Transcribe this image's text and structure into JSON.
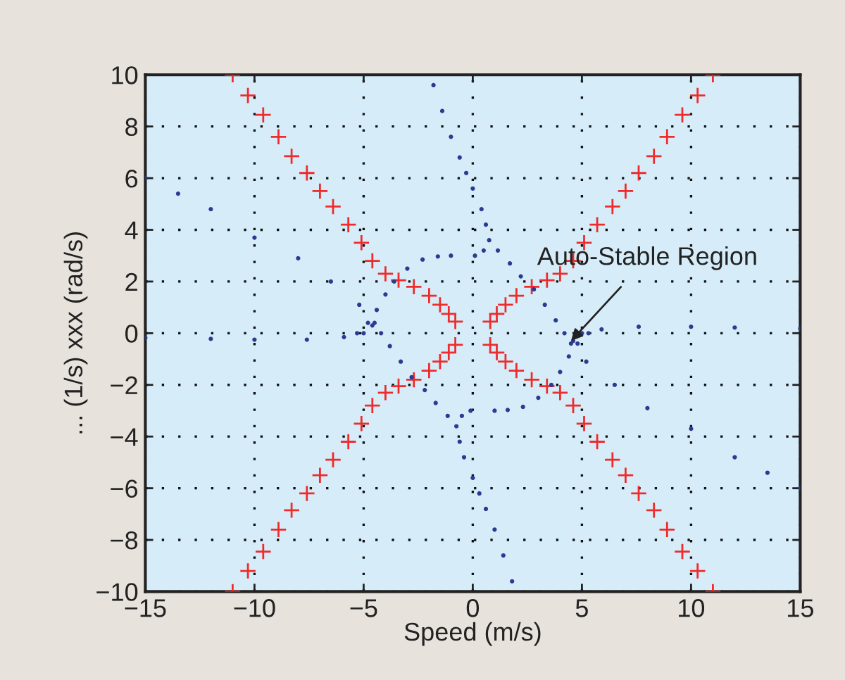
{
  "chart_data": {
    "type": "scatter",
    "xlabel": "Speed (m/s)",
    "ylabel": "... (1/s) xxx (rad/s)",
    "xlim": [
      -15,
      15
    ],
    "xticks": [
      {
        "value": -15,
        "label": "−15"
      },
      {
        "value": -10,
        "label": "−10"
      },
      {
        "value": -5,
        "label": "−5"
      },
      0,
      5,
      10,
      15
    ],
    "ylim": [
      -10,
      10
    ],
    "yticks": [
      {
        "value": -10,
        "label": "−10"
      },
      {
        "value": -8,
        "label": "−8"
      },
      {
        "value": -6,
        "label": "−6"
      },
      {
        "value": -4,
        "label": "−4"
      },
      {
        "value": -2,
        "label": "−2"
      },
      0,
      2,
      4,
      6,
      8,
      10
    ],
    "grid": true,
    "annotations": [
      {
        "text": "Auto-Stable Region",
        "x": 4.5,
        "y": -0.3
      }
    ],
    "series": [
      {
        "color": "#ef2b2b",
        "marker": "cross",
        "x": [
          -11,
          -10.3,
          -9.6,
          -8.9,
          -8.3,
          -7.6,
          -7,
          -6.4,
          -5.7,
          -5.1,
          -4.6,
          -4.0,
          -3.4,
          -2.7,
          -2.0,
          -1.5,
          -1.1,
          -0.8,
          0.8,
          1.1,
          1.5,
          2.0,
          2.7,
          3.4,
          4.0,
          4.6,
          5.1,
          5.7,
          6.4,
          7,
          7.6,
          8.3,
          8.9,
          9.6,
          10.3,
          11,
          11,
          10.3,
          9.6,
          8.9,
          8.3,
          7.6,
          7,
          6.4,
          5.7,
          5.1,
          4.6,
          4.0,
          3.4,
          2.7,
          2.0,
          1.5,
          1.1,
          0.8,
          -0.8,
          -1.1,
          -1.5,
          -2.0,
          -2.7,
          -3.4,
          -4.0,
          -4.6,
          -5.1,
          -5.7,
          -6.4,
          -7,
          -7.6,
          -8.3,
          -8.9,
          -9.6,
          -10.3,
          -11
        ],
        "values": [
          10,
          9.2,
          8.45,
          7.6,
          6.85,
          6.2,
          5.5,
          4.9,
          4.2,
          3.5,
          2.8,
          2.3,
          2.05,
          1.8,
          1.45,
          1.1,
          0.75,
          0.45,
          0.45,
          0.75,
          1.1,
          1.45,
          1.8,
          2.05,
          2.3,
          2.8,
          3.5,
          4.2,
          4.9,
          5.5,
          6.2,
          6.85,
          7.6,
          8.45,
          9.2,
          10,
          -10,
          -9.2,
          -8.45,
          -7.6,
          -6.85,
          -6.2,
          -5.5,
          -4.9,
          -4.2,
          -3.5,
          -2.8,
          -2.3,
          -2.05,
          -1.8,
          -1.45,
          -1.1,
          -0.75,
          -0.45,
          -0.45,
          -0.75,
          -1.1,
          -1.45,
          -1.8,
          -2.05,
          -2.3,
          -2.8,
          -3.5,
          -4.2,
          -4.9,
          -5.5,
          -6.2,
          -6.85,
          -7.6,
          -8.45,
          -9.2,
          -10
        ]
      },
      {
        "color": "#2c3a92",
        "marker": "circle",
        "x": [
          -1.8,
          -1.4,
          -1.0,
          -0.6,
          -0.3,
          0,
          0.4,
          0.6,
          0.75,
          1.15,
          1.7,
          2.2,
          2.8,
          3.3,
          3.8,
          4.2,
          4.5,
          5.2,
          6.5,
          8,
          10,
          12,
          13.5,
          15,
          4.6,
          5.0,
          5.9,
          7.6,
          10,
          12,
          15,
          -5.3,
          -4.8,
          -4.4,
          -4.0,
          -3.6,
          -3.0,
          -2.3,
          -1.6,
          -1.0,
          0.1,
          0.5,
          1.8,
          1.4,
          1.0,
          0.6,
          0.3,
          0,
          -0.4,
          -0.6,
          -0.75,
          -1.15,
          -1.7,
          -2.2,
          -2.8,
          -3.3,
          -3.8,
          -4.2,
          -4.5,
          -5.2,
          -6.5,
          -8,
          -10,
          -12,
          -13.5,
          -15,
          -4.6,
          -5.0,
          -5.9,
          -7.6,
          -10,
          -12,
          -15,
          5.3,
          4.8,
          4.4,
          4.0,
          3.6,
          3.0,
          2.3,
          1.6,
          1.0,
          -0.1,
          -0.5
        ],
        "values": [
          9.6,
          8.6,
          7.6,
          6.8,
          6.2,
          5.6,
          4.8,
          4.2,
          3.6,
          3.2,
          2.7,
          2.2,
          1.7,
          1.1,
          0.5,
          0,
          -0.4,
          -1.1,
          -2.0,
          -2.9,
          -3.7,
          -4.8,
          -5.4,
          -6,
          -0.3,
          0,
          0.15,
          0.25,
          0.25,
          0.22,
          0.18,
          0,
          0.4,
          0.9,
          1.5,
          2.0,
          2.5,
          2.85,
          2.97,
          3.0,
          3.0,
          3.2,
          -9.6,
          -8.6,
          -7.6,
          -6.8,
          -6.2,
          -5.6,
          -4.8,
          -4.2,
          -3.6,
          -3.2,
          -2.7,
          -2.2,
          -1.7,
          -1.1,
          -0.5,
          0,
          0.4,
          1.1,
          2.0,
          2.9,
          3.7,
          4.8,
          5.4,
          6,
          0.3,
          0,
          -0.15,
          -0.25,
          -0.25,
          -0.22,
          -0.18,
          0,
          -0.4,
          -0.9,
          -1.5,
          -2.0,
          -2.5,
          -2.85,
          -2.97,
          -3.0,
          -3.0,
          -3.2
        ]
      }
    ]
  }
}
